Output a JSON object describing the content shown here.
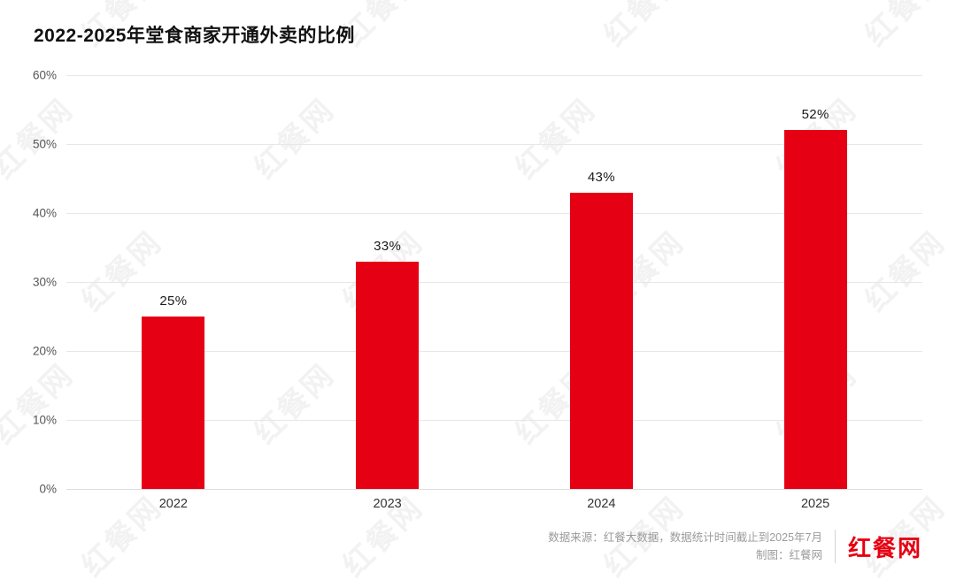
{
  "title": "2022-2025年堂食商家开通外卖的比例",
  "watermark": {
    "text": "红餐网"
  },
  "chart_data": {
    "type": "bar",
    "categories": [
      "2022",
      "2023",
      "2024",
      "2025"
    ],
    "values": [
      25,
      33,
      43,
      52
    ],
    "value_labels": [
      "25%",
      "33%",
      "43%",
      "52%"
    ],
    "title": "2022-2025年堂食商家开通外卖的比例",
    "xlabel": "",
    "ylabel": "",
    "ylim": [
      0,
      60
    ],
    "ytick_step": 10,
    "yticks": [
      "60%",
      "50%",
      "40%",
      "30%",
      "20%",
      "10%",
      "0%"
    ],
    "grid": true,
    "legend": false,
    "bar_color": "#e60014"
  },
  "footer": {
    "source_line": "数据来源：红餐大数据，数据统计时间截止到2025年7月",
    "credit_line": "制图：红餐网",
    "logo_text": "红餐网"
  },
  "colors": {
    "accent_red": "#e60012",
    "bar_red": "#e60014",
    "gridline": "#e7e7e7",
    "axis_text": "#555555",
    "footer_text": "#9b9b9b",
    "background": "#ffffff"
  }
}
